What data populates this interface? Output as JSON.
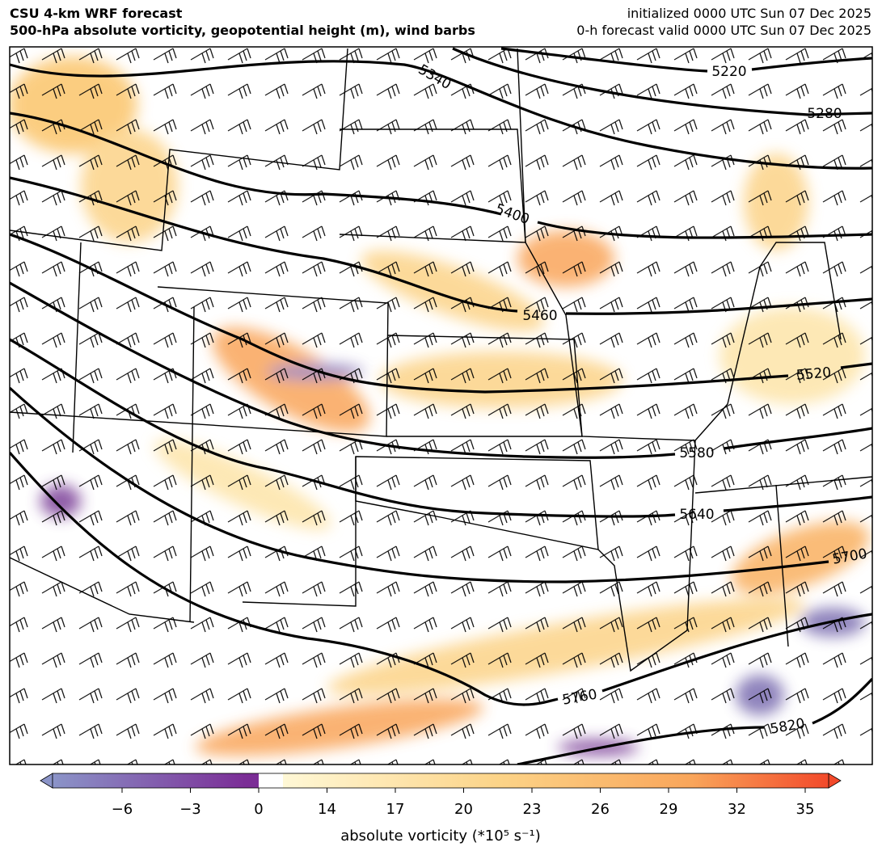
{
  "header": {
    "title_left_1": "CSU 4-km WRF forecast",
    "title_left_2": "500-hPa absolute vorticity, geopotential height (m), wind barbs",
    "title_right_1": "initialized 0000 UTC Sun 07 Dec 2025",
    "title_right_2": "0-h forecast valid 0000 UTC Sun 07 Dec 2025"
  },
  "contour_labels": [
    5220,
    5280,
    5340,
    5400,
    5460,
    5520,
    5580,
    5640,
    5700,
    5760,
    5820
  ],
  "colorbar": {
    "ticks": [
      {
        "value": -6,
        "label": "−6"
      },
      {
        "value": -3,
        "label": "−3"
      },
      0,
      14,
      17,
      20,
      23,
      26,
      29,
      32,
      35
    ],
    "label": "absolute vorticity (*10⁵ s⁻¹)"
  }
}
